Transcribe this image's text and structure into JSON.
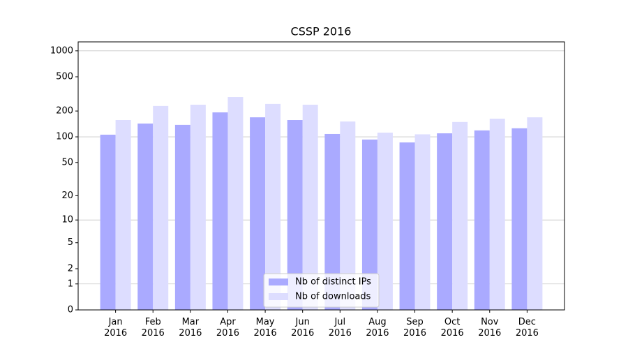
{
  "chart_data": {
    "type": "bar",
    "title": "CSSP 2016",
    "categories": [
      "Jan\n2016",
      "Feb\n2016",
      "Mar\n2016",
      "Apr\n2016",
      "May\n2016",
      "Jun\n2016",
      "Jul\n2016",
      "Aug\n2016",
      "Sep\n2016",
      "Oct\n2016",
      "Nov\n2016",
      "Dec\n2016"
    ],
    "series": [
      {
        "name": "Nb of distinct IPs",
        "color": "#aaaaff",
        "values": [
          106,
          143,
          138,
          193,
          169,
          157,
          108,
          93,
          86,
          110,
          119,
          126
        ]
      },
      {
        "name": "Nb of downloads",
        "color": "#ddddff",
        "values": [
          157,
          229,
          237,
          291,
          242,
          237,
          151,
          112,
          107,
          149,
          163,
          169
        ]
      }
    ],
    "yscale": "log1p",
    "ylim": [
      0,
      1270
    ],
    "yticks": [
      0,
      1,
      2,
      5,
      10,
      20,
      50,
      100,
      200,
      500,
      1000
    ],
    "gridlines": [
      1,
      10,
      100,
      1000
    ],
    "legend": "lower center"
  }
}
